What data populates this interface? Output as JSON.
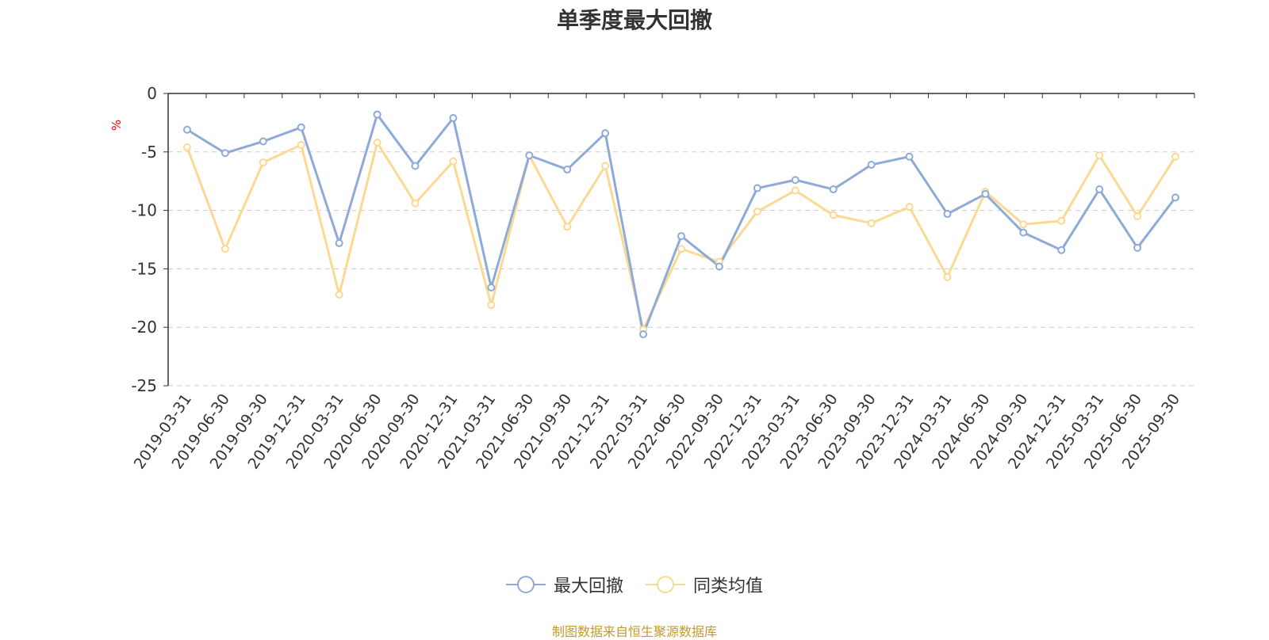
{
  "title": "单季度最大回撤",
  "footer": "制图数据来自恒生聚源数据库",
  "colors": {
    "series1": "#8eaad9",
    "series2": "#fcd993",
    "axis": "#333333",
    "grid": "#cccccc",
    "unit": "#ff0000",
    "footer": "#c59a2a"
  },
  "chart_data": {
    "type": "line",
    "title": "单季度最大回撤",
    "ylabel": "%",
    "ylim": [
      -25,
      0
    ],
    "yticks": [
      0,
      -5,
      -10,
      -15,
      -20,
      -25
    ],
    "grid": "dashed horizontal",
    "legend": "bottom-center",
    "categories": [
      "2019-03-31",
      "2019-06-30",
      "2019-09-30",
      "2019-12-31",
      "2020-03-31",
      "2020-06-30",
      "2020-09-30",
      "2020-12-31",
      "2021-03-31",
      "2021-06-30",
      "2021-09-30",
      "2021-12-31",
      "2022-03-31",
      "2022-06-30",
      "2022-09-30",
      "2022-12-31",
      "2023-03-31",
      "2023-06-30",
      "2023-09-30",
      "2023-12-31",
      "2024-03-31",
      "2024-06-30",
      "2024-09-30",
      "2024-12-31",
      "2025-03-31",
      "2025-06-30",
      "2025-09-30"
    ],
    "series": [
      {
        "name": "最大回撤",
        "color": "#8eaad9",
        "values": [
          -3.1,
          -5.1,
          -4.1,
          -2.9,
          -12.8,
          -1.8,
          -6.2,
          -2.1,
          -16.6,
          -5.3,
          -6.5,
          -3.4,
          -20.6,
          -12.2,
          -14.8,
          -8.1,
          -7.4,
          -8.2,
          -6.1,
          -5.4,
          -10.3,
          -8.6,
          -11.9,
          -13.4,
          -8.2,
          -13.2,
          -8.9
        ]
      },
      {
        "name": "同类均值",
        "color": "#fcd993",
        "values": [
          -4.6,
          -13.3,
          -5.9,
          -4.4,
          -17.2,
          -4.2,
          -9.4,
          -5.8,
          -18.1,
          -5.3,
          -11.4,
          -6.2,
          -20.2,
          -13.3,
          -14.4,
          -10.1,
          -8.3,
          -10.4,
          -11.1,
          -9.7,
          -15.7,
          -8.4,
          -11.2,
          -10.9,
          -5.3,
          -10.5,
          -5.4
        ]
      }
    ]
  }
}
